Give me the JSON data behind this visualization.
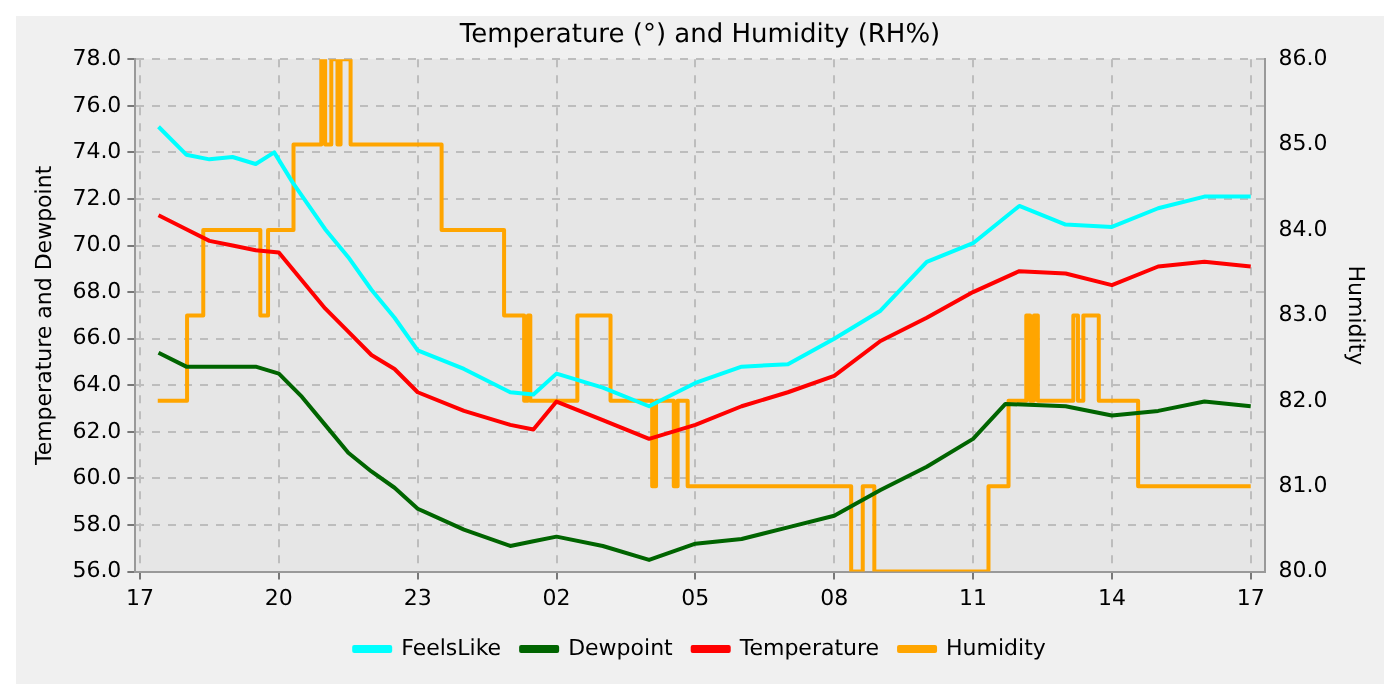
{
  "chart_data": {
    "type": "line",
    "title": "Temperature (°) and Humidity (RH%)",
    "ylabel": "Temperature and Dewpoint",
    "y2label": "Humidity",
    "xlim": [
      "--01-01T16:54",
      "--01-02T17:18"
    ],
    "xticks": [
      {
        "value": "--01-01T17:00",
        "label": "17"
      },
      {
        "value": "--01-01T20:00",
        "label": "20"
      },
      {
        "value": "--01-01T23:00",
        "label": "23"
      },
      {
        "value": "--01-02T02:00",
        "label": "02"
      },
      {
        "value": "--01-02T05:00",
        "label": "05"
      },
      {
        "value": "--01-02T08:00",
        "label": "08"
      },
      {
        "value": "--01-02T11:00",
        "label": "11"
      },
      {
        "value": "--01-02T14:00",
        "label": "14"
      },
      {
        "value": "--01-02T17:00",
        "label": "17"
      }
    ],
    "ylim": [
      56,
      78
    ],
    "yticks": [
      {
        "value": 56,
        "label": "56.0"
      },
      {
        "value": 58,
        "label": "58.0"
      },
      {
        "value": 60,
        "label": "60.0"
      },
      {
        "value": 62,
        "label": "62.0"
      },
      {
        "value": 64,
        "label": "64.0"
      },
      {
        "value": 66,
        "label": "66.0"
      },
      {
        "value": 68,
        "label": "68.0"
      },
      {
        "value": 70,
        "label": "70.0"
      },
      {
        "value": 72,
        "label": "72.0"
      },
      {
        "value": 74,
        "label": "74.0"
      },
      {
        "value": 76,
        "label": "76.0"
      },
      {
        "value": 78,
        "label": "78.0"
      }
    ],
    "y2lim": [
      80,
      86
    ],
    "y2ticks": [
      {
        "value": 80,
        "label": "80.0"
      },
      {
        "value": 81,
        "label": "81.0"
      },
      {
        "value": 82,
        "label": "82.0"
      },
      {
        "value": 83,
        "label": "83.0"
      },
      {
        "value": 84,
        "label": "84.0"
      },
      {
        "value": 85,
        "label": "85.0"
      },
      {
        "value": 86,
        "label": "86.0"
      }
    ],
    "grid": true,
    "legend": "bottom",
    "marker": "none",
    "line_style": "solid",
    "series": [
      {
        "name": "FeelsLike",
        "color": "#00ffff",
        "x": [
          "--01-01T17:24",
          "--01-01T18:00",
          "--01-01T18:30",
          "--01-01T19:00",
          "--01-01T19:30",
          "--01-01T19:54",
          "--01-01T20:18",
          "--01-01T21:00",
          "--01-01T21:30",
          "--01-01T22:00",
          "--01-01T22:30",
          "--01-01T23:00",
          "--01-02T00:00",
          "--01-02T01:00",
          "--01-02T01:30",
          "--01-02T02:00",
          "--01-02T03:00",
          "--01-02T04:00",
          "--01-02T05:00",
          "--01-02T06:00",
          "--01-02T07:00",
          "--01-02T08:00",
          "--01-02T09:00",
          "--01-02T10:00",
          "--01-02T11:00",
          "--01-02T12:00",
          "--01-02T13:00",
          "--01-02T14:00",
          "--01-02T15:00",
          "--01-02T16:00",
          "--01-02T17:00"
        ],
        "values": [
          75.1,
          73.9,
          73.7,
          73.8,
          73.5,
          74.0,
          72.7,
          70.7,
          69.5,
          68.1,
          66.9,
          65.5,
          64.7,
          63.7,
          63.6,
          64.5,
          63.9,
          63.1,
          64.1,
          64.8,
          64.9,
          66.0,
          67.2,
          69.3,
          70.1,
          71.7,
          70.9,
          70.8,
          71.6,
          72.1,
          72.1
        ]
      },
      {
        "name": "Dewpoint",
        "color": "#006400",
        "x": [
          "--01-01T17:24",
          "--01-01T18:00",
          "--01-01T18:30",
          "--01-01T19:00",
          "--01-01T19:30",
          "--01-01T20:00",
          "--01-01T20:30",
          "--01-01T21:00",
          "--01-01T21:30",
          "--01-01T22:00",
          "--01-01T22:30",
          "--01-01T23:00",
          "--01-02T00:00",
          "--01-02T01:00",
          "--01-02T01:30",
          "--01-02T02:00",
          "--01-02T03:00",
          "--01-02T04:00",
          "--01-02T05:00",
          "--01-02T06:00",
          "--01-02T07:00",
          "--01-02T08:00",
          "--01-02T09:00",
          "--01-02T10:00",
          "--01-02T11:00",
          "--01-02T11:42",
          "--01-02T13:00",
          "--01-02T14:00",
          "--01-02T15:00",
          "--01-02T16:00",
          "--01-02T17:00"
        ],
        "values": [
          65.4,
          64.8,
          64.8,
          64.8,
          64.8,
          64.5,
          63.5,
          62.3,
          61.1,
          60.3,
          59.6,
          58.7,
          57.8,
          57.1,
          57.3,
          57.5,
          57.1,
          56.5,
          57.2,
          57.4,
          57.9,
          58.4,
          59.5,
          60.5,
          61.7,
          63.2,
          63.1,
          62.7,
          62.9,
          63.3,
          63.1
        ]
      },
      {
        "name": "Temperature",
        "color": "#ff0000",
        "x": [
          "--01-01T17:24",
          "--01-01T18:00",
          "--01-01T18:30",
          "--01-01T19:00",
          "--01-01T19:30",
          "--01-01T20:00",
          "--01-01T20:30",
          "--01-01T21:00",
          "--01-01T21:30",
          "--01-01T22:00",
          "--01-01T22:30",
          "--01-01T23:00",
          "--01-02T00:00",
          "--01-02T01:00",
          "--01-02T01:30",
          "--01-02T02:00",
          "--01-02T03:00",
          "--01-02T04:00",
          "--01-02T05:00",
          "--01-02T06:00",
          "--01-02T07:00",
          "--01-02T08:00",
          "--01-02T09:00",
          "--01-02T10:00",
          "--01-02T11:00",
          "--01-02T12:00",
          "--01-02T13:00",
          "--01-02T14:00",
          "--01-02T15:00",
          "--01-02T16:00",
          "--01-02T17:00"
        ],
        "values": [
          71.3,
          70.7,
          70.2,
          70.0,
          69.8,
          69.7,
          68.5,
          67.3,
          66.3,
          65.3,
          64.7,
          63.7,
          62.9,
          62.3,
          62.1,
          63.3,
          62.5,
          61.7,
          62.3,
          63.1,
          63.7,
          64.4,
          65.9,
          66.9,
          68.0,
          68.9,
          68.8,
          68.3,
          69.1,
          69.3,
          69.1
        ]
      },
      {
        "name": "Humidity",
        "type": "step",
        "axis": "y2",
        "color": "#ffa500",
        "x": [
          "--01-01T17:23",
          "--01-01T18:01",
          "--01-01T18:22",
          "--01-01T19:36",
          "--01-01T19:46",
          "--01-01T20:19",
          "--01-01T20:55",
          "--01-01T21:00",
          "--01-01T21:08",
          "--01-01T21:16",
          "--01-01T21:20",
          "--01-01T21:33",
          "--01-01T23:31",
          "--01-02T00:52",
          "--01-02T01:18",
          "--01-02T01:23",
          "--01-02T01:26",
          "--01-02T02:27",
          "--01-02T03:10",
          "--01-02T04:04",
          "--01-02T04:09",
          "--01-02T04:32",
          "--01-02T04:37",
          "--01-02T04:50",
          "--01-02T08:22",
          "--01-02T08:37",
          "--01-02T08:52",
          "--01-02T11:20",
          "--01-02T11:46",
          "--01-02T12:09",
          "--01-02T12:14",
          "--01-02T12:19",
          "--01-02T12:24",
          "--01-02T13:10",
          "--01-02T13:16",
          "--01-02T13:23",
          "--01-02T13:43",
          "--01-02T14:34",
          "--01-02T17:00"
        ],
        "values": [
          82,
          83,
          84,
          83,
          84,
          85,
          86,
          85,
          86,
          85,
          86,
          85,
          84,
          83,
          82,
          83,
          82,
          83,
          82,
          81,
          82,
          81,
          82,
          81,
          80,
          81,
          80,
          81,
          82,
          83,
          82,
          83,
          82,
          83,
          82,
          83,
          82,
          81,
          81
        ]
      }
    ]
  }
}
